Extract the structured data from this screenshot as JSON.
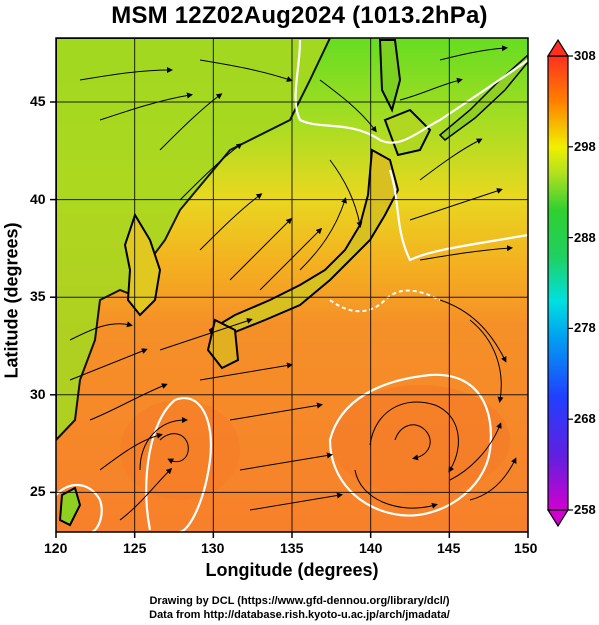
{
  "header": {
    "title": "MSM 12Z02Aug2024 (1013.2hPa)"
  },
  "axes": {
    "xlabel": "Longitude (degrees)",
    "ylabel": "Latitude  (degrees)",
    "xticks": [
      "120",
      "125",
      "130",
      "135",
      "140",
      "145",
      "150"
    ],
    "yticks": [
      "25",
      "30",
      "35",
      "40",
      "45"
    ],
    "xrange": [
      120,
      150
    ],
    "yrange": [
      22.5,
      47.5
    ]
  },
  "colorbar": {
    "ticks": [
      "308",
      "298",
      "288",
      "278",
      "268",
      "258"
    ],
    "range": [
      258,
      308
    ],
    "colors": {
      "low": "#d000d0",
      "mid_low": "#2040ff",
      "mid": "#00e0e0",
      "mid_high": "#30d030",
      "warm": "#f0f000",
      "high": "#ff8000",
      "top": "#ff3020"
    }
  },
  "map_features": {
    "land_outline_color": "#000000",
    "contour_298_color": "#ffffff",
    "streamline_color": "#000000"
  },
  "footer": {
    "credit_1": "Drawing by DCL (https://www.gfd-dennou.org/library/dcl/)",
    "credit_2": "Data from http://database.rish.kyoto-u.ac.jp/arch/jmadata/"
  }
}
